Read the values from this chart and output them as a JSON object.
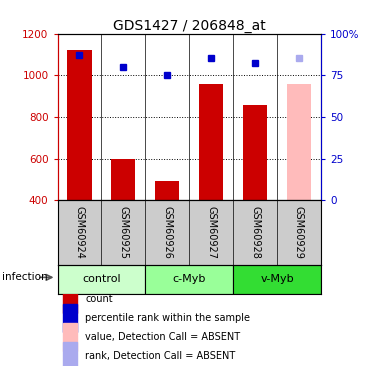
{
  "title": "GDS1427 / 206848_at",
  "samples": [
    "GSM60924",
    "GSM60925",
    "GSM60926",
    "GSM60927",
    "GSM60928",
    "GSM60929"
  ],
  "counts": [
    1120,
    600,
    495,
    960,
    860,
    null
  ],
  "ranks": [
    1100,
    1040,
    1000,
    1085,
    1058,
    null
  ],
  "absent_count": [
    null,
    null,
    null,
    null,
    null,
    960
  ],
  "absent_rank": [
    null,
    null,
    null,
    null,
    null,
    1082
  ],
  "ylim": [
    400,
    1200
  ],
  "yticks": [
    400,
    600,
    800,
    1000,
    1200
  ],
  "right_yticks_pct": [
    0,
    25,
    50,
    75,
    100
  ],
  "right_ylabels": [
    "0",
    "25",
    "50",
    "75",
    "100%"
  ],
  "groups": [
    {
      "label": "control",
      "start": 0,
      "end": 2,
      "color": "#ccffcc"
    },
    {
      "label": "c-Myb",
      "start": 2,
      "end": 4,
      "color": "#99ff99"
    },
    {
      "label": "v-Myb",
      "start": 4,
      "end": 6,
      "color": "#33dd33"
    }
  ],
  "bar_color_present": "#cc0000",
  "bar_color_absent": "#ffbbbb",
  "rank_color_present": "#0000cc",
  "rank_color_absent": "#aaaaee",
  "left_axis_color": "#cc0000",
  "right_axis_color": "#0000cc",
  "sample_bg_color": "#cccccc",
  "legend_items": [
    {
      "color": "#cc0000",
      "label": "count"
    },
    {
      "color": "#0000cc",
      "label": "percentile rank within the sample"
    },
    {
      "color": "#ffbbbb",
      "label": "value, Detection Call = ABSENT"
    },
    {
      "color": "#aaaaee",
      "label": "rank, Detection Call = ABSENT"
    }
  ]
}
